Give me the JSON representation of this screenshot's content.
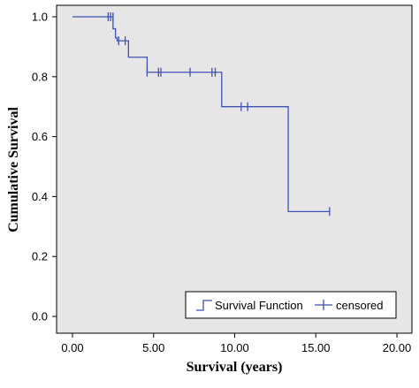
{
  "chart_data": {
    "type": "line",
    "title": "",
    "xlabel": "Survival (years)",
    "ylabel": "Cumulative Survival",
    "xlim": [
      0,
      20
    ],
    "ylim": [
      0,
      1
    ],
    "x_ticks": [
      0,
      5,
      10,
      15,
      20
    ],
    "x_tick_labels": [
      "0.00",
      "5.00",
      "10.00",
      "15.00",
      "20.00"
    ],
    "y_ticks": [
      0,
      0.2,
      0.4,
      0.6,
      0.8,
      1.0
    ],
    "y_tick_labels": [
      "0.0",
      "0.2",
      "0.4",
      "0.6",
      "0.8",
      "1.0"
    ],
    "grid": false,
    "legend_position": "bottom-right",
    "series": [
      {
        "name": "Survival Function",
        "style": "step",
        "x": [
          0,
          2.5,
          2.65,
          2.75,
          3.45,
          4.6,
          9.2,
          13.3,
          15.85
        ],
        "values": [
          1.0,
          0.96,
          0.93,
          0.92,
          0.865,
          0.815,
          0.7,
          0.35,
          0.35
        ]
      },
      {
        "name": "censored",
        "style": "marker",
        "x": [
          2.2,
          2.35,
          2.5,
          2.85,
          3.25,
          4.6,
          5.3,
          5.45,
          7.25,
          8.6,
          8.8,
          10.4,
          10.8,
          15.85
        ],
        "values": [
          1.0,
          1.0,
          1.0,
          0.92,
          0.92,
          0.815,
          0.815,
          0.815,
          0.815,
          0.815,
          0.815,
          0.7,
          0.7,
          0.35
        ]
      }
    ],
    "colors": {
      "plot_background": "#e6e6e6",
      "series": "#3f51b5",
      "legend_background": "#ffffff"
    }
  }
}
